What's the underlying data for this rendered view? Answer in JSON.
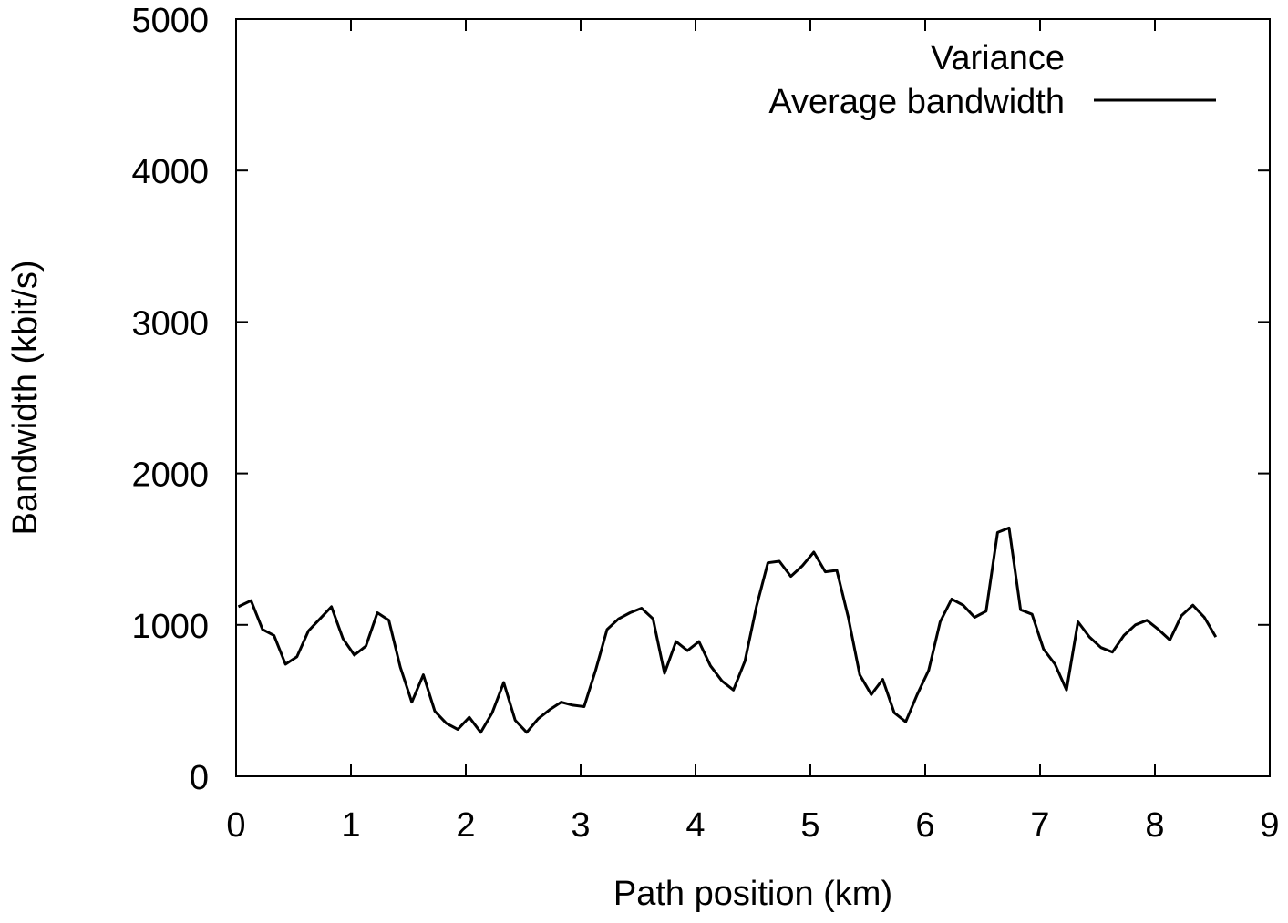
{
  "chart_data": {
    "type": "line",
    "title": "",
    "xlabel": "Path position (km)",
    "ylabel": "Bandwidth (kbit/s)",
    "xlim": [
      0,
      9
    ],
    "ylim": [
      0,
      5000
    ],
    "xticks": [
      0,
      1,
      2,
      3,
      4,
      5,
      6,
      7,
      8,
      9
    ],
    "yticks": [
      0,
      1000,
      2000,
      3000,
      4000,
      5000
    ],
    "xtick_labels": [
      "0",
      "1",
      "2",
      "3",
      "4",
      "5",
      "6",
      "7",
      "8",
      "9"
    ],
    "ytick_labels": [
      "0",
      "1000",
      "2000",
      "3000",
      "4000",
      "5000"
    ],
    "grid": false,
    "legend": {
      "placement": "top-right",
      "entries": [
        {
          "name": "Variance",
          "has_line": false
        },
        {
          "name": "Average bandwidth",
          "has_line": true
        }
      ]
    },
    "series": [
      {
        "name": "Average bandwidth",
        "color": "#000000",
        "x": [
          0.02,
          0.13,
          0.23,
          0.33,
          0.43,
          0.53,
          0.63,
          0.73,
          0.83,
          0.93,
          1.03,
          1.13,
          1.23,
          1.33,
          1.43,
          1.53,
          1.63,
          1.73,
          1.83,
          1.93,
          2.03,
          2.13,
          2.23,
          2.33,
          2.43,
          2.53,
          2.63,
          2.73,
          2.83,
          2.93,
          3.03,
          3.13,
          3.23,
          3.33,
          3.43,
          3.53,
          3.63,
          3.73,
          3.83,
          3.93,
          4.03,
          4.13,
          4.23,
          4.33,
          4.43,
          4.53,
          4.63,
          4.73,
          4.83,
          4.93,
          5.03,
          5.13,
          5.23,
          5.33,
          5.43,
          5.53,
          5.63,
          5.73,
          5.83,
          5.93,
          6.03,
          6.13,
          6.23,
          6.33,
          6.43,
          6.53,
          6.63,
          6.73,
          6.83,
          6.93,
          7.03,
          7.13,
          7.23,
          7.33,
          7.43,
          7.53,
          7.63,
          7.73,
          7.83,
          7.93,
          8.03,
          8.13,
          8.23,
          8.33,
          8.43,
          8.53
        ],
        "y": [
          1120,
          1160,
          970,
          930,
          740,
          790,
          960,
          1040,
          1120,
          910,
          800,
          860,
          1080,
          1030,
          720,
          490,
          670,
          430,
          350,
          310,
          390,
          290,
          420,
          620,
          370,
          290,
          380,
          440,
          490,
          470,
          460,
          700,
          970,
          1040,
          1080,
          1110,
          1040,
          680,
          890,
          830,
          890,
          730,
          630,
          570,
          760,
          1120,
          1410,
          1420,
          1320,
          1390,
          1480,
          1350,
          1360,
          1050,
          670,
          540,
          640,
          420,
          360,
          540,
          700,
          1020,
          1170,
          1130,
          1050,
          1090,
          1610,
          1640,
          1100,
          1070,
          840,
          740,
          570,
          1020,
          920,
          850,
          820,
          930,
          1000,
          1030,
          970,
          900,
          1060,
          1130,
          1050,
          920
        ]
      }
    ]
  }
}
